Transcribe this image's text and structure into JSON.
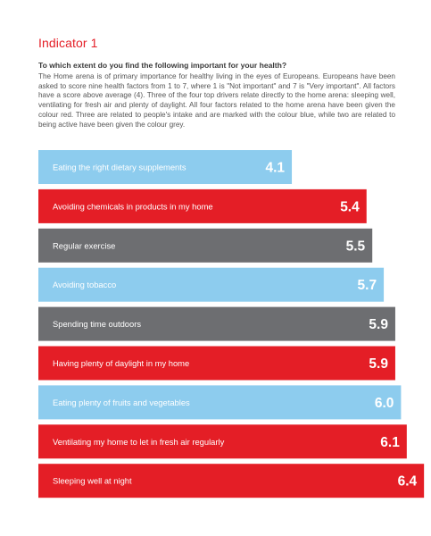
{
  "header": {
    "indicator": "Indicator 1",
    "question": "To which extent do you find the following important for your health?",
    "intro": "The Home arena is of primary importance for healthy living in the eyes of Europeans. Europeans have been asked to score nine health factors from 1 to 7, where 1 is \"Not important\" and 7 is \"Very important\". All factors have a score above average (4). Three of the four top drivers relate directly to the home arena: sleeping well, ventilating for fresh air and plenty of daylight. All four factors related to the home arena have been given the colour red. Three are related to people's intake and are marked with the colour blue, while two are related to being active have been given the colour grey."
  },
  "colors": {
    "home": "#e41e26",
    "intake": "#8dccee",
    "active": "#6d6e71"
  },
  "chart_data": {
    "type": "bar",
    "orientation": "horizontal",
    "categories": [
      "Eating the right dietary supplements",
      "Avoiding chemicals in products in my home",
      "Regular exercise",
      "Avoiding tobacco",
      "Spending time outdoors",
      "Having plenty of daylight in my home",
      "Eating plenty of fruits and vegetables",
      "Ventilating my home to let in fresh air regularly",
      "Sleeping well at night"
    ],
    "values": [
      4.1,
      5.4,
      5.5,
      5.7,
      5.9,
      5.9,
      6.0,
      6.1,
      6.4
    ],
    "value_labels": [
      "4.1",
      "5.4",
      "5.5",
      "5.7",
      "5.9",
      "5.9",
      "6.0",
      "6.1",
      "6.4"
    ],
    "groups": [
      "intake",
      "home",
      "active",
      "intake",
      "active",
      "home",
      "intake",
      "home",
      "home"
    ],
    "title": "",
    "xlabel": "",
    "ylabel": "",
    "xlim": [
      0,
      7
    ],
    "grid": false,
    "legend": "none"
  }
}
